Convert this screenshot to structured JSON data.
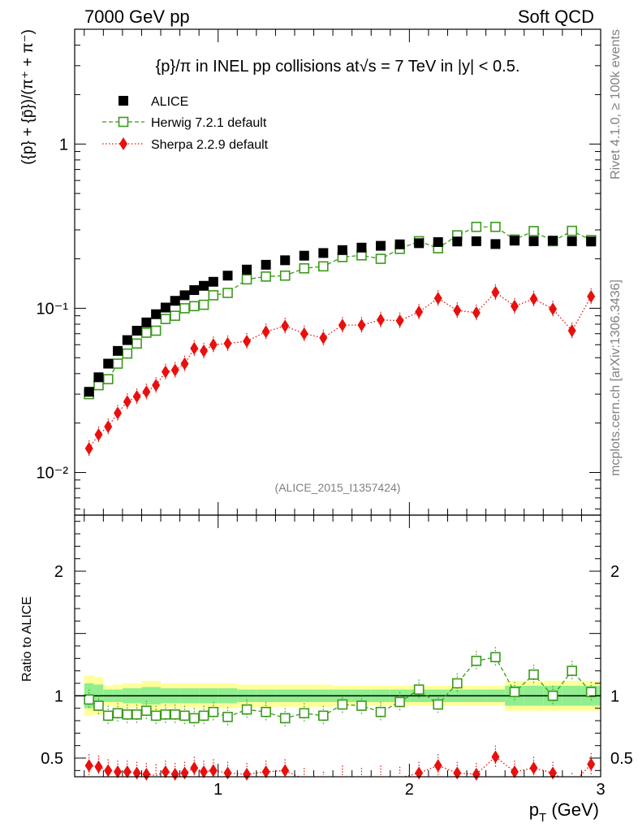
{
  "header": {
    "left": "7000 GeV pp",
    "right": "Soft QCD"
  },
  "side_labels": {
    "rivet": "Rivet 4.1.0, ≥ 100k events",
    "mcplots": "mcplots.cern.ch [arXiv:1306.3436]"
  },
  "chart_data": {
    "type": "scatter",
    "title": "{p}/π in INEL pp collisions at√s =  7 TeV in |y| < 0.5.",
    "analysis_tag": "(ALICE_2015_I1357424)",
    "xlabel": "p_T (GeV)",
    "ylabel": "({p} + {p̄})/(π⁺ + π⁻)",
    "ratio_ylabel": "Ratio to ALICE",
    "xlim": [
      0.25,
      3.0
    ],
    "ylim": [
      0.0055,
      5.0
    ],
    "yscale": "log",
    "ratio_ylim": [
      0.35,
      2.45
    ],
    "x_ticks": [
      "1",
      "2",
      "3"
    ],
    "y_ticks": [
      "10⁻²",
      "10⁻¹",
      "1"
    ],
    "ratio_ticks": [
      "0.5",
      "1",
      "2"
    ],
    "x": [
      0.325,
      0.375,
      0.425,
      0.475,
      0.525,
      0.575,
      0.625,
      0.675,
      0.725,
      0.775,
      0.825,
      0.875,
      0.925,
      0.975,
      1.05,
      1.15,
      1.25,
      1.35,
      1.45,
      1.55,
      1.65,
      1.75,
      1.85,
      1.95,
      2.05,
      2.15,
      2.25,
      2.35,
      2.45,
      2.55,
      2.65,
      2.75,
      2.85,
      2.95
    ],
    "series": [
      {
        "name": "ALICE",
        "marker": "square-filled",
        "color": "#000000",
        "values": [
          0.031,
          0.038,
          0.046,
          0.055,
          0.064,
          0.073,
          0.082,
          0.092,
          0.101,
          0.111,
          0.12,
          0.129,
          0.137,
          0.145,
          0.158,
          0.172,
          0.184,
          0.196,
          0.209,
          0.217,
          0.226,
          0.234,
          0.24,
          0.245,
          0.249,
          0.253,
          0.255,
          0.256,
          0.246,
          0.258,
          0.256,
          0.258,
          0.256,
          0.255
        ]
      },
      {
        "name": "Herwig 7.2.1 default",
        "marker": "square-open",
        "line": "dashed",
        "color": "#3a9a1a",
        "values": [
          0.03,
          0.034,
          0.037,
          0.046,
          0.053,
          0.061,
          0.071,
          0.073,
          0.086,
          0.09,
          0.1,
          0.103,
          0.105,
          0.12,
          0.124,
          0.15,
          0.156,
          0.158,
          0.175,
          0.18,
          0.205,
          0.21,
          0.2,
          0.23,
          0.256,
          0.232,
          0.278,
          0.313,
          0.313,
          0.262,
          0.295,
          0.256,
          0.296,
          0.26
        ],
        "ratio": [
          0.97,
          0.92,
          0.84,
          0.86,
          0.85,
          0.85,
          0.88,
          0.84,
          0.85,
          0.85,
          0.84,
          0.82,
          0.84,
          0.87,
          0.83,
          0.89,
          0.87,
          0.82,
          0.86,
          0.84,
          0.93,
          0.92,
          0.87,
          0.95,
          1.05,
          0.93,
          1.1,
          1.28,
          1.31,
          1.03,
          1.17,
          1.0,
          1.2,
          1.03
        ]
      },
      {
        "name": "Sherpa 2.2.9 default",
        "marker": "diamond-filled",
        "line": "dotted",
        "color": "#e8100e",
        "values": [
          0.014,
          0.017,
          0.019,
          0.023,
          0.027,
          0.029,
          0.031,
          0.034,
          0.041,
          0.042,
          0.046,
          0.057,
          0.055,
          0.06,
          0.061,
          0.063,
          0.072,
          0.078,
          0.07,
          0.066,
          0.079,
          0.079,
          0.085,
          0.084,
          0.095,
          0.115,
          0.097,
          0.094,
          0.125,
          0.103,
          0.114,
          0.099,
          0.073,
          0.118
        ],
        "ratio": [
          0.44,
          0.43,
          0.4,
          0.39,
          0.39,
          0.38,
          0.37,
          0.36,
          0.39,
          0.37,
          0.38,
          0.42,
          0.39,
          0.4,
          0.38,
          0.37,
          0.39,
          0.4,
          0.33,
          0.3,
          0.35,
          0.33,
          0.35,
          0.34,
          0.38,
          0.44,
          0.38,
          0.37,
          0.51,
          0.39,
          0.42,
          0.38,
          0.29,
          0.45
        ]
      }
    ],
    "uncertainty_bands": {
      "inner_color": "#90ee90",
      "outer_color": "#ffff99",
      "edges": [
        0.3,
        0.35,
        0.4,
        0.45,
        0.5,
        0.6,
        0.7,
        0.8,
        0.9,
        1.0,
        1.1,
        1.2,
        1.3,
        1.4,
        1.5,
        1.6,
        1.7,
        1.8,
        1.9,
        2.0,
        2.1,
        2.2,
        2.3,
        2.4,
        2.5,
        2.6,
        2.7,
        2.8,
        2.9,
        3.0
      ],
      "inner": [
        0.1,
        0.09,
        0.05,
        0.05,
        0.06,
        0.07,
        0.06,
        0.06,
        0.06,
        0.06,
        0.05,
        0.05,
        0.05,
        0.05,
        0.05,
        0.05,
        0.05,
        0.05,
        0.05,
        0.05,
        0.05,
        0.05,
        0.05,
        0.05,
        0.08,
        0.08,
        0.08,
        0.08,
        0.08
      ],
      "outer": [
        0.16,
        0.15,
        0.08,
        0.09,
        0.1,
        0.12,
        0.1,
        0.1,
        0.1,
        0.1,
        0.09,
        0.09,
        0.09,
        0.09,
        0.09,
        0.08,
        0.08,
        0.08,
        0.08,
        0.08,
        0.08,
        0.08,
        0.08,
        0.08,
        0.12,
        0.12,
        0.12,
        0.12,
        0.12
      ]
    }
  }
}
